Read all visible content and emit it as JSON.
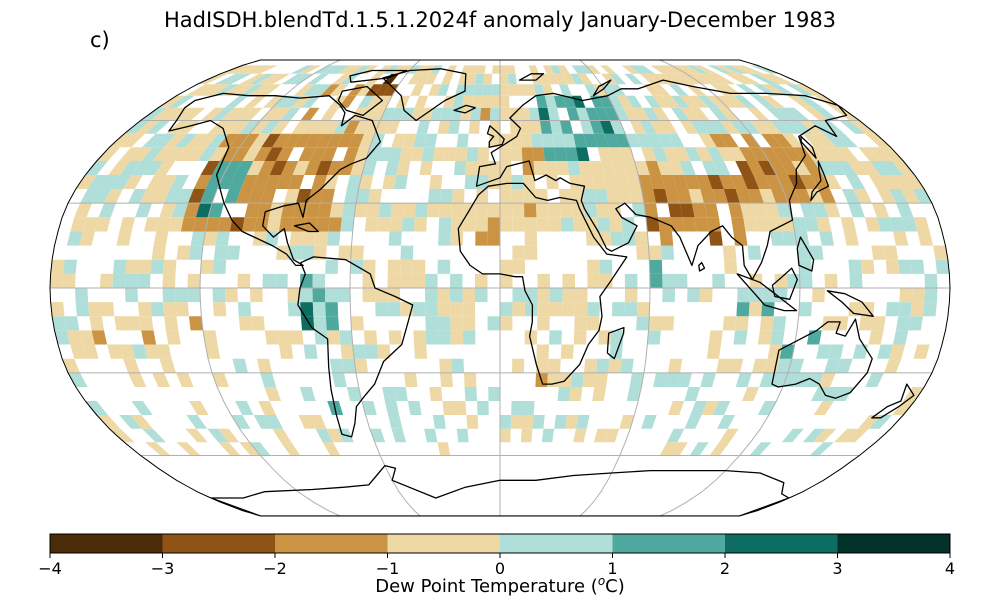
{
  "title": "HadISDH.blendTd.1.5.1.2024f anomaly January-December 1983",
  "panel_label": "c)",
  "colorbar": {
    "label_prefix": "Dew Point Temperature (",
    "label_unit_sup": "o",
    "label_suffix": "C)",
    "ticks": [
      "−4",
      "−3",
      "−2",
      "−1",
      "0",
      "1",
      "2",
      "3",
      "4"
    ],
    "range": [
      -4,
      4
    ],
    "colors": [
      "#4a2c09",
      "#8f5315",
      "#cb9444",
      "#eed9a6",
      "#b0dfda",
      "#4fa99e",
      "#0d6d61",
      "#013128"
    ]
  },
  "map": {
    "projection": "Robinson",
    "grid_color": "#b0b0b0",
    "land_outline_color": "#000000",
    "chart_data": {
      "type": "heatmap",
      "variable": "dew point temperature anomaly",
      "region_anomalies": [
        {
          "lon": [
            -130,
            -65
          ],
          "lat": [
            20,
            55
          ],
          "value": -1.5
        },
        {
          "lon": [
            -125,
            -110
          ],
          "lat": [
            25,
            45
          ],
          "value": 1.5
        },
        {
          "lon": [
            -100,
            -60
          ],
          "lat": [
            55,
            75
          ],
          "value": -0.5
        },
        {
          "lon": [
            -75,
            -55
          ],
          "lat": [
            70,
            82
          ],
          "value": -2.5
        },
        {
          "lon": [
            -165,
            -140
          ],
          "lat": [
            55,
            72
          ],
          "value": -0.5
        },
        {
          "lon": [
            -80,
            -60
          ],
          "lat": [
            -20,
            5
          ],
          "value": 0.5
        },
        {
          "lon": [
            -82,
            -75
          ],
          "lat": [
            -15,
            -5
          ],
          "value": 2.5
        },
        {
          "lon": [
            -75,
            -60
          ],
          "lat": [
            -50,
            -25
          ],
          "value": 0.5
        },
        {
          "lon": [
            -10,
            30
          ],
          "lat": [
            40,
            70
          ],
          "value": -0.5
        },
        {
          "lon": [
            20,
            60
          ],
          "lat": [
            45,
            70
          ],
          "value": 1.5
        },
        {
          "lon": [
            40,
            80
          ],
          "lat": [
            30,
            50
          ],
          "value": -0.5
        },
        {
          "lon": [
            60,
            100
          ],
          "lat": [
            15,
            40
          ],
          "value": -1.5
        },
        {
          "lon": [
            100,
            140
          ],
          "lat": [
            30,
            55
          ],
          "value": -1.5
        },
        {
          "lon": [
            -20,
            40
          ],
          "lat": [
            0,
            35
          ],
          "value": -0.5
        },
        {
          "lon": [
            15,
            35
          ],
          "lat": [
            -35,
            -20
          ],
          "value": -0.5
        },
        {
          "lon": [
            115,
            155
          ],
          "lat": [
            -40,
            -15
          ],
          "value": 0.5
        },
        {
          "lon": [
            60,
            110
          ],
          "lat": [
            -10,
            10
          ],
          "value": 0.5
        },
        {
          "lon": [
            -170,
            -120
          ],
          "lat": [
            -30,
            -10
          ],
          "value": -0.5
        }
      ]
    }
  }
}
